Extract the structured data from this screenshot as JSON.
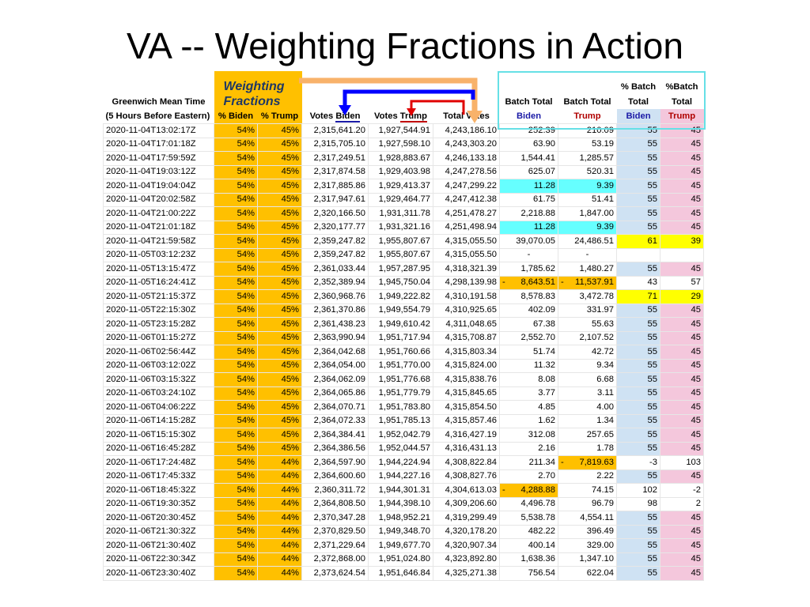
{
  "title": "VA -- Weighting Fractions in Action",
  "header": {
    "gmt_line1": "Greenwich Mean Time",
    "gmt_line2": "(5 Hours Before Eastern)",
    "weighting_line1": "Weighting",
    "weighting_line2": "Fractions",
    "pct_biden": "% Biden",
    "pct_trump": "% Trump",
    "votes_prefix": "Votes ",
    "biden": "Biden",
    "trump": "Trump",
    "total_votes": "Total Votes",
    "batch_total": "Batch Total",
    "pct_batch": "% Batch",
    "pct_batch2": "%Batch",
    "total": "Total"
  },
  "colors": {
    "weighting_column": "#ffc000",
    "biden_pct_column": "#cfe2f3",
    "trump_pct_column": "#f4c7dc",
    "highlight_cyan": "#66ffff",
    "highlight_yellow": "#ffff00",
    "arrow_orange": "#f8b26a",
    "arrow_blue": "#0000ff",
    "arrow_red": "#e00000"
  },
  "rows": [
    {
      "ts": "2020-11-04T13:02:17Z",
      "pb": "54%",
      "pt": "45%",
      "vb": "2,315,641.20",
      "vt": "1,927,544.91",
      "tv": "4,243,186.10",
      "bb": "252.39",
      "bt": "210.09",
      "b": "55",
      "t": "45"
    },
    {
      "ts": "2020-11-04T17:01:18Z",
      "pb": "54%",
      "pt": "45%",
      "vb": "2,315,705.10",
      "vt": "1,927,598.10",
      "tv": "4,243,303.20",
      "bb": "63.90",
      "bt": "53.19",
      "b": "55",
      "t": "45"
    },
    {
      "ts": "2020-11-04T17:59:59Z",
      "pb": "54%",
      "pt": "45%",
      "vb": "2,317,249.51",
      "vt": "1,928,883.67",
      "tv": "4,246,133.18",
      "bb": "1,544.41",
      "bt": "1,285.57",
      "b": "55",
      "t": "45"
    },
    {
      "ts": "2020-11-04T19:03:12Z",
      "pb": "54%",
      "pt": "45%",
      "vb": "2,317,874.58",
      "vt": "1,929,403.98",
      "tv": "4,247,278.56",
      "bb": "625.07",
      "bt": "520.31",
      "b": "55",
      "t": "45"
    },
    {
      "ts": "2020-11-04T19:04:04Z",
      "pb": "54%",
      "pt": "45%",
      "vb": "2,317,885.86",
      "vt": "1,929,413.37",
      "tv": "4,247,299.22",
      "bb": "11.28",
      "bt": "9.39",
      "b": "55",
      "t": "45",
      "hl": "cyan"
    },
    {
      "ts": "2020-11-04T20:02:58Z",
      "pb": "54%",
      "pt": "45%",
      "vb": "2,317,947.61",
      "vt": "1,929,464.77",
      "tv": "4,247,412.38",
      "bb": "61.75",
      "bt": "51.41",
      "b": "55",
      "t": "45"
    },
    {
      "ts": "2020-11-04T21:00:22Z",
      "pb": "54%",
      "pt": "45%",
      "vb": "2,320,166.50",
      "vt": "1,931,311.78",
      "tv": "4,251,478.27",
      "bb": "2,218.88",
      "bt": "1,847.00",
      "b": "55",
      "t": "45"
    },
    {
      "ts": "2020-11-04T21:01:18Z",
      "pb": "54%",
      "pt": "45%",
      "vb": "2,320,177.77",
      "vt": "1,931,321.16",
      "tv": "4,251,498.94",
      "bb": "11.28",
      "bt": "9.39",
      "b": "55",
      "t": "45",
      "hl": "cyan"
    },
    {
      "ts": "2020-11-04T21:59:58Z",
      "pb": "54%",
      "pt": "45%",
      "vb": "2,359,247.82",
      "vt": "1,955,807.67",
      "tv": "4,315,055.50",
      "bb": "39,070.05",
      "bt": "24,486.51",
      "b": "61",
      "t": "39",
      "pctHl": "yellow"
    },
    {
      "ts": "2020-11-05T03:12:23Z",
      "pb": "54%",
      "pt": "45%",
      "vb": "2,359,247.82",
      "vt": "1,955,807.67",
      "tv": "4,315,055.50",
      "bb": "-",
      "bt": "-",
      "b": "",
      "t": "",
      "center": true,
      "nopct": true
    },
    {
      "ts": "2020-11-05T13:15:47Z",
      "pb": "54%",
      "pt": "45%",
      "vb": "2,361,033.44",
      "vt": "1,957,287.95",
      "tv": "4,318,321.39",
      "bb": "1,785.62",
      "bt": "1,480.27",
      "b": "55",
      "t": "45"
    },
    {
      "ts": "2020-11-05T16:24:41Z",
      "pb": "54%",
      "pt": "45%",
      "vb": "2,352,389.94",
      "vt": "1,945,750.04",
      "tv": "4,298,139.98",
      "bb": "8,643.51",
      "bt": "11,537.91",
      "b": "43",
      "t": "57",
      "negB": true,
      "negT": true,
      "nopct": true
    },
    {
      "ts": "2020-11-05T21:15:37Z",
      "pb": "54%",
      "pt": "45%",
      "vb": "2,360,968.76",
      "vt": "1,949,222.82",
      "tv": "4,310,191.58",
      "bb": "8,578.83",
      "bt": "3,472.78",
      "b": "71",
      "t": "29",
      "pctHl": "yellow"
    },
    {
      "ts": "2020-11-05T22:15:30Z",
      "pb": "54%",
      "pt": "45%",
      "vb": "2,361,370.86",
      "vt": "1,949,554.79",
      "tv": "4,310,925.65",
      "bb": "402.09",
      "bt": "331.97",
      "b": "55",
      "t": "45"
    },
    {
      "ts": "2020-11-05T23:15:28Z",
      "pb": "54%",
      "pt": "45%",
      "vb": "2,361,438.23",
      "vt": "1,949,610.42",
      "tv": "4,311,048.65",
      "bb": "67.38",
      "bt": "55.63",
      "b": "55",
      "t": "45"
    },
    {
      "ts": "2020-11-06T01:15:27Z",
      "pb": "54%",
      "pt": "45%",
      "vb": "2,363,990.94",
      "vt": "1,951,717.94",
      "tv": "4,315,708.87",
      "bb": "2,552.70",
      "bt": "2,107.52",
      "b": "55",
      "t": "45"
    },
    {
      "ts": "2020-11-06T02:56:44Z",
      "pb": "54%",
      "pt": "45%",
      "vb": "2,364,042.68",
      "vt": "1,951,760.66",
      "tv": "4,315,803.34",
      "bb": "51.74",
      "bt": "42.72",
      "b": "55",
      "t": "45"
    },
    {
      "ts": "2020-11-06T03:12:02Z",
      "pb": "54%",
      "pt": "45%",
      "vb": "2,364,054.00",
      "vt": "1,951,770.00",
      "tv": "4,315,824.00",
      "bb": "11.32",
      "bt": "9.34",
      "b": "55",
      "t": "45"
    },
    {
      "ts": "2020-11-06T03:15:32Z",
      "pb": "54%",
      "pt": "45%",
      "vb": "2,364,062.09",
      "vt": "1,951,776.68",
      "tv": "4,315,838.76",
      "bb": "8.08",
      "bt": "6.68",
      "b": "55",
      "t": "45"
    },
    {
      "ts": "2020-11-06T03:24:10Z",
      "pb": "54%",
      "pt": "45%",
      "vb": "2,364,065.86",
      "vt": "1,951,779.79",
      "tv": "4,315,845.65",
      "bb": "3.77",
      "bt": "3.11",
      "b": "55",
      "t": "45"
    },
    {
      "ts": "2020-11-06T04:06:22Z",
      "pb": "54%",
      "pt": "45%",
      "vb": "2,364,070.71",
      "vt": "1,951,783.80",
      "tv": "4,315,854.50",
      "bb": "4.85",
      "bt": "4.00",
      "b": "55",
      "t": "45"
    },
    {
      "ts": "2020-11-06T14:15:28Z",
      "pb": "54%",
      "pt": "45%",
      "vb": "2,364,072.33",
      "vt": "1,951,785.13",
      "tv": "4,315,857.46",
      "bb": "1.62",
      "bt": "1.34",
      "b": "55",
      "t": "45"
    },
    {
      "ts": "2020-11-06T15:15:30Z",
      "pb": "54%",
      "pt": "45%",
      "vb": "2,364,384.41",
      "vt": "1,952,042.79",
      "tv": "4,316,427.19",
      "bb": "312.08",
      "bt": "257.65",
      "b": "55",
      "t": "45"
    },
    {
      "ts": "2020-11-06T16:45:28Z",
      "pb": "54%",
      "pt": "45%",
      "vb": "2,364,386.56",
      "vt": "1,952,044.57",
      "tv": "4,316,431.13",
      "bb": "2.16",
      "bt": "1.78",
      "b": "55",
      "t": "45"
    },
    {
      "ts": "2020-11-06T17:24:48Z",
      "pb": "54%",
      "pt": "44%",
      "vb": "2,364,597.90",
      "vt": "1,944,224.94",
      "tv": "4,308,822.84",
      "bb": "211.34",
      "bt": "7,819.63",
      "b": "-3",
      "t": "103",
      "negT": true,
      "nopct": true
    },
    {
      "ts": "2020-11-06T17:45:33Z",
      "pb": "54%",
      "pt": "44%",
      "vb": "2,364,600.60",
      "vt": "1,944,227.16",
      "tv": "4,308,827.76",
      "bb": "2.70",
      "bt": "2.22",
      "b": "55",
      "t": "45"
    },
    {
      "ts": "2020-11-06T18:45:32Z",
      "pb": "54%",
      "pt": "44%",
      "vb": "2,360,311.72",
      "vt": "1,944,301.31",
      "tv": "4,304,613.03",
      "bb": "4,288.88",
      "bt": "74.15",
      "b": "102",
      "t": "-2",
      "negB": true,
      "nopct": true
    },
    {
      "ts": "2020-11-06T19:30:35Z",
      "pb": "54%",
      "pt": "44%",
      "vb": "2,364,808.50",
      "vt": "1,944,398.10",
      "tv": "4,309,206.60",
      "bb": "4,496.78",
      "bt": "96.79",
      "b": "98",
      "t": "2",
      "nopct": true
    },
    {
      "ts": "2020-11-06T20:30:45Z",
      "pb": "54%",
      "pt": "44%",
      "vb": "2,370,347.28",
      "vt": "1,948,952.21",
      "tv": "4,319,299.49",
      "bb": "5,538.78",
      "bt": "4,554.11",
      "b": "55",
      "t": "45"
    },
    {
      "ts": "2020-11-06T21:30:32Z",
      "pb": "54%",
      "pt": "44%",
      "vb": "2,370,829.50",
      "vt": "1,949,348.70",
      "tv": "4,320,178.20",
      "bb": "482.22",
      "bt": "396.49",
      "b": "55",
      "t": "45"
    },
    {
      "ts": "2020-11-06T21:30:40Z",
      "pb": "54%",
      "pt": "44%",
      "vb": "2,371,229.64",
      "vt": "1,949,677.70",
      "tv": "4,320,907.34",
      "bb": "400.14",
      "bt": "329.00",
      "b": "55",
      "t": "45"
    },
    {
      "ts": "2020-11-06T22:30:34Z",
      "pb": "54%",
      "pt": "44%",
      "vb": "2,372,868.00",
      "vt": "1,951,024.80",
      "tv": "4,323,892.80",
      "bb": "1,638.36",
      "bt": "1,347.10",
      "b": "55",
      "t": "45"
    },
    {
      "ts": "2020-11-06T23:30:40Z",
      "pb": "54%",
      "pt": "44%",
      "vb": "2,373,624.54",
      "vt": "1,951,646.84",
      "tv": "4,325,271.38",
      "bb": "756.54",
      "bt": "622.04",
      "b": "55",
      "t": "45"
    }
  ]
}
